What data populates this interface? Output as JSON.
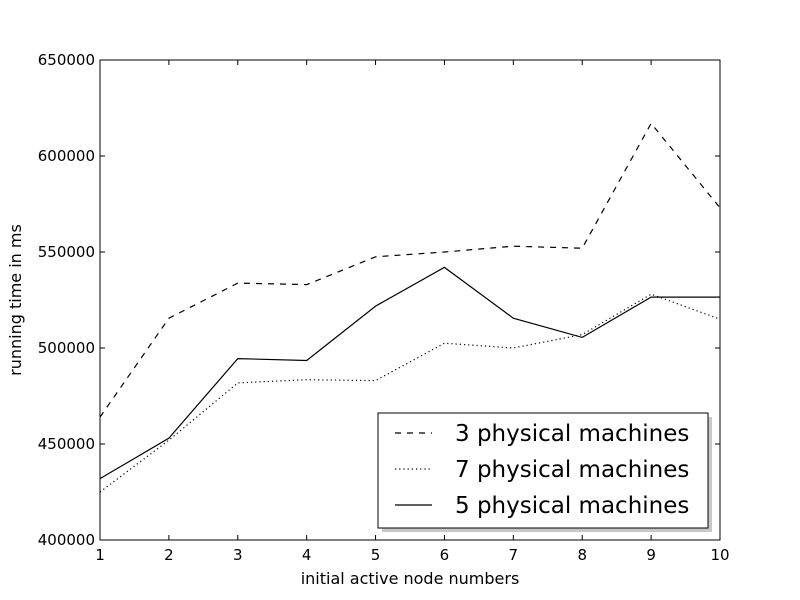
{
  "chart_data": {
    "type": "line",
    "title": "",
    "xlabel": "initial active node numbers",
    "ylabel": "running time in ms",
    "xlim": [
      1,
      10
    ],
    "ylim": [
      400000,
      650000
    ],
    "x": [
      1,
      2,
      3,
      4,
      5,
      6,
      7,
      8,
      9,
      10
    ],
    "x_ticks": [
      "1",
      "2",
      "3",
      "4",
      "5",
      "6",
      "7",
      "8",
      "9",
      "10"
    ],
    "y_ticks": [
      "400000",
      "450000",
      "500000",
      "550000",
      "600000",
      "650000"
    ],
    "y_tick_values": [
      400000,
      450000,
      500000,
      550000,
      600000,
      650000
    ],
    "grid": false,
    "legend_position": "lower-right",
    "series": [
      {
        "name": "3 physical machines",
        "style": "dashed",
        "color": "#000000",
        "values": [
          464000,
          515500,
          533800,
          533000,
          547500,
          550000,
          553000,
          552000,
          617000,
          573000
        ]
      },
      {
        "name": "7 physical machines",
        "style": "dotted",
        "color": "#000000",
        "values": [
          425000,
          452000,
          481800,
          483500,
          483000,
          502500,
          500000,
          507000,
          528000,
          515000
        ]
      },
      {
        "name": "5 physical machines",
        "style": "solid",
        "color": "#000000",
        "values": [
          432000,
          453000,
          494500,
          493500,
          521800,
          542000,
          515500,
          505500,
          526500,
          526500
        ]
      }
    ]
  }
}
